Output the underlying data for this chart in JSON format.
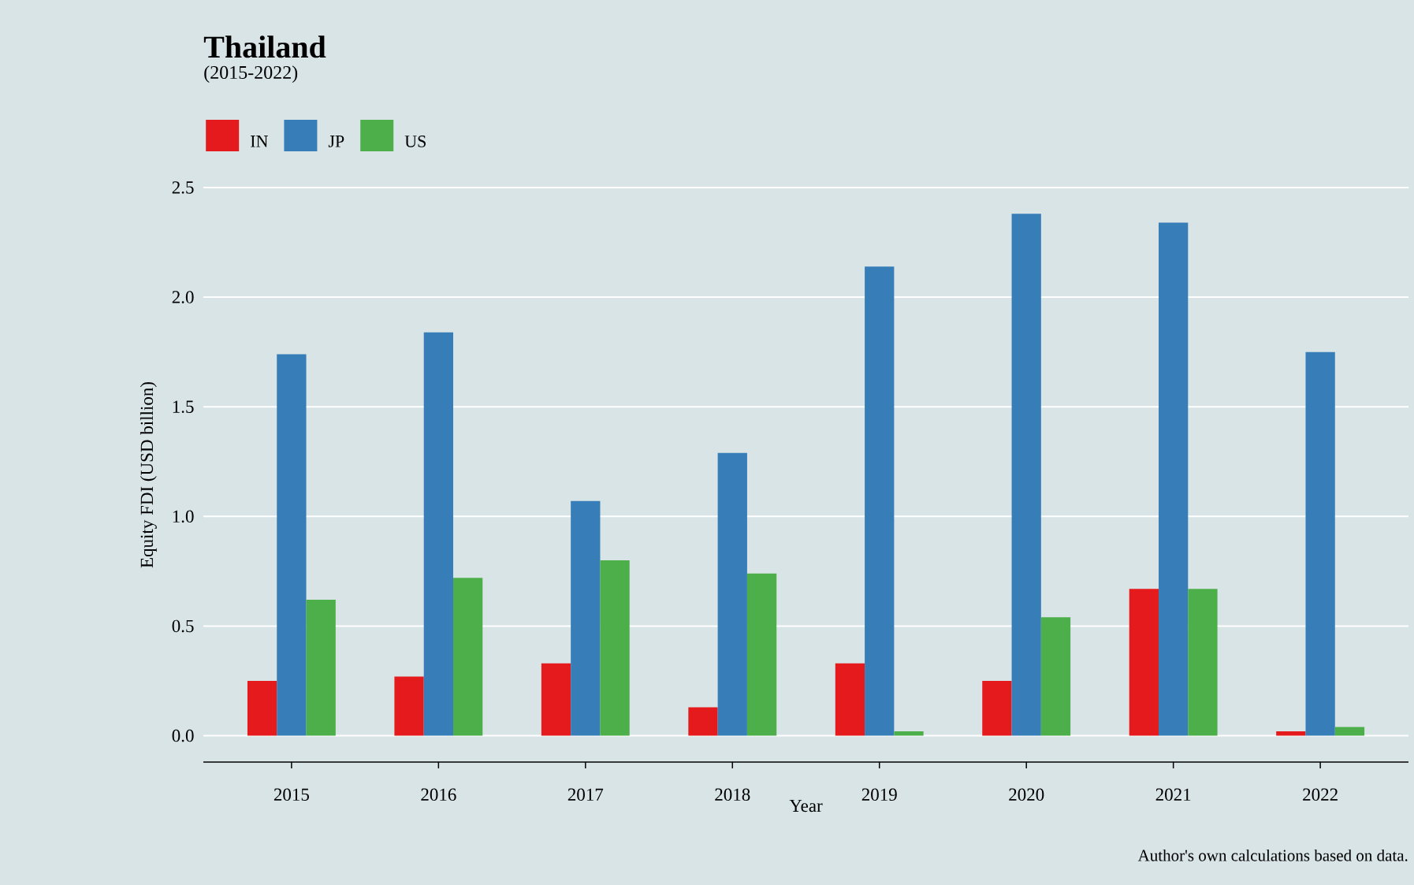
{
  "chart_data": {
    "type": "bar",
    "title": "Thailand",
    "subtitle": "(2015-2022)",
    "xlabel": "Year",
    "ylabel": "Equity FDI (USD billion)",
    "annotations": [
      "Author's own calculations based on data."
    ],
    "categories": [
      "2015",
      "2016",
      "2017",
      "2018",
      "2019",
      "2020",
      "2021",
      "2022"
    ],
    "series": [
      {
        "name": "IN",
        "color": "#e41a1c",
        "values": [
          0.25,
          0.27,
          0.33,
          0.13,
          0.33,
          0.25,
          0.67,
          0.02
        ]
      },
      {
        "name": "JP",
        "color": "#377eb8",
        "values": [
          1.74,
          1.84,
          1.07,
          1.29,
          2.14,
          2.38,
          2.34,
          1.75
        ]
      },
      {
        "name": "US",
        "color": "#4daf4a",
        "values": [
          0.62,
          0.72,
          0.8,
          0.74,
          0.02,
          0.54,
          0.67,
          0.04
        ]
      }
    ],
    "ylim": [
      -0.12,
      2.5
    ],
    "yticks": [
      {
        "value": 0,
        "label": "0.0"
      },
      {
        "value": 0.5,
        "label": "0.5"
      },
      {
        "value": 1,
        "label": "1.0"
      },
      {
        "value": 1.5,
        "label": "1.5"
      },
      {
        "value": 2,
        "label": "2.0"
      },
      {
        "value": 2.5,
        "label": "2.5"
      }
    ],
    "grid": "y",
    "legend": "top left"
  }
}
